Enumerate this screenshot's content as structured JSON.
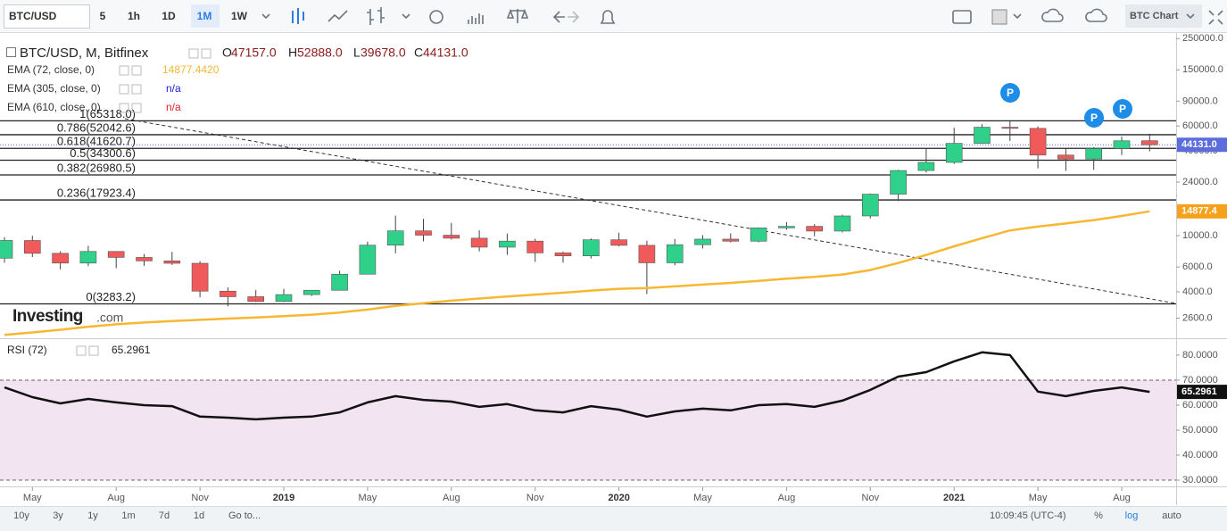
{
  "toolbar": {
    "symbol": "BTC/USD",
    "intervals": [
      "5",
      "1h",
      "1D",
      "1M",
      "1W"
    ],
    "active_interval": 3,
    "layout_name": "BTC Chart"
  },
  "watermark": [
    "Investing",
    ".com"
  ],
  "bottom_bar": {
    "ranges": [
      "10y",
      "3y",
      "1y",
      "1m",
      "7d",
      "1d"
    ],
    "goto": "Go to...",
    "clock": "10:09:45 (UTC-4)",
    "toggles": [
      "%",
      "log",
      "auto"
    ]
  },
  "chart_data": [
    {
      "type": "candlestick",
      "title": "BTC/USD, M, Bitfinex",
      "ohlc_labels": [
        {
          "key": "O",
          "value": "47157.0"
        },
        {
          "key": "H",
          "value": "52888.0"
        },
        {
          "key": "L",
          "value": "39678.0"
        },
        {
          "key": "C",
          "value": "44131.0"
        }
      ],
      "categories": [
        null,
        "May",
        null,
        null,
        "Aug",
        null,
        null,
        "Nov",
        null,
        null,
        "2019",
        null,
        null,
        "May",
        null,
        null,
        "Aug",
        null,
        null,
        "Nov",
        null,
        null,
        "2020",
        null,
        null,
        "May",
        null,
        null,
        "Aug",
        null,
        null,
        "Nov",
        null,
        null,
        "2021",
        null,
        null,
        "May",
        null,
        null,
        "Aug",
        null
      ],
      "open": [
        6926,
        9245,
        7494,
        6391,
        7729,
        7011,
        6626,
        6370,
        4040,
        3690,
        3420,
        3820,
        4100,
        5330,
        8560,
        10820,
        10080,
        9600,
        8290,
        9150,
        7550,
        7190,
        9350,
        8540,
        6420,
        8630,
        9450,
        9140,
        11350,
        11650,
        10780,
        13800,
        19700,
        28990,
        33100,
        45200,
        58800,
        57700,
        37300,
        35000,
        41500,
        47157
      ],
      "high": [
        9759,
        10000,
        7760,
        8480,
        7760,
        7410,
        7680,
        6590,
        4300,
        4120,
        4200,
        4120,
        5640,
        9080,
        13880,
        13180,
        12320,
        10920,
        10360,
        9520,
        7700,
        9560,
        10500,
        9200,
        9480,
        10080,
        10380,
        11440,
        12480,
        12080,
        14100,
        19900,
        29300,
        41950,
        58350,
        61780,
        64890,
        59600,
        41300,
        42400,
        50500,
        52888
      ],
      "low": [
        6430,
        7056,
        5774,
        6080,
        5880,
        6115,
        6200,
        3650,
        3150,
        3380,
        3380,
        3730,
        4090,
        5330,
        7500,
        9100,
        9400,
        7730,
        7300,
        6520,
        6430,
        6880,
        8400,
        3850,
        6170,
        8120,
        8960,
        8980,
        10990,
        9900,
        10540,
        13250,
        17600,
        28130,
        32300,
        44950,
        47000,
        30000,
        28800,
        29300,
        37300,
        39678
      ],
      "close": [
        9245,
        7494,
        6391,
        7729,
        7011,
        6626,
        6370,
        4040,
        3690,
        3420,
        3820,
        4100,
        5330,
        8560,
        10820,
        10080,
        9600,
        8290,
        9150,
        7550,
        7190,
        9350,
        8540,
        6420,
        8630,
        9450,
        9140,
        11350,
        11650,
        10780,
        13800,
        19700,
        28990,
        33100,
        45200,
        58800,
        57700,
        37300,
        35000,
        41500,
        47100,
        44131
      ],
      "up_color": "#2fd08a",
      "down_color": "#f05a5a",
      "series": [
        {
          "name": "EMA (72, close, 0)",
          "color": "#f7b733",
          "value_label": "14877.4420",
          "values": [
            1980,
            2060,
            2150,
            2260,
            2350,
            2420,
            2480,
            2530,
            2580,
            2630,
            2690,
            2750,
            2850,
            2990,
            3180,
            3320,
            3460,
            3580,
            3700,
            3820,
            3940,
            4080,
            4200,
            4250,
            4370,
            4500,
            4620,
            4780,
            4950,
            5100,
            5300,
            5700,
            6400,
            7300,
            8400,
            9600,
            10900,
            11600,
            12200,
            12900,
            13800,
            14877
          ]
        },
        {
          "name": "EMA (305, close, 0)",
          "color": "#2222dd",
          "value_label": "n/a"
        },
        {
          "name": "EMA (610, close, 0)",
          "color": "#dd2222",
          "value_label": "n/a"
        }
      ],
      "log_scale": true,
      "grid": false,
      "ylim": [
        1900,
        270000
      ],
      "yticks": [
        {
          "value": 250000,
          "label": "250000.0"
        },
        {
          "value": 150000,
          "label": "150000.0"
        },
        {
          "value": 90000,
          "label": "90000.0"
        },
        {
          "value": 60000,
          "label": "60000.0"
        },
        {
          "value": 40000,
          "label": "40000.0"
        },
        {
          "value": 24000,
          "label": "24000.0"
        },
        {
          "value": 10000,
          "label": "10000.0"
        },
        {
          "value": 6000,
          "label": "6000.0"
        },
        {
          "value": 4000,
          "label": "4000.0"
        },
        {
          "value": 2600,
          "label": "2600.0"
        }
      ],
      "fib_levels": [
        {
          "value": 65318,
          "label": "1(65318.0)"
        },
        {
          "value": 52042.6,
          "label": "0.786(52042.6)"
        },
        {
          "value": 41620.7,
          "label": "0.618(41620.7)"
        },
        {
          "value": 34300.6,
          "label": "0.5(34300.6)"
        },
        {
          "value": 26980.5,
          "label": "0.382(26980.5)"
        },
        {
          "value": 17923.4,
          "label": "0.236(17923.4)"
        },
        {
          "value": 3283.2,
          "label": "0(3283.2)"
        }
      ],
      "price_badges": [
        {
          "value": 44131,
          "label": "44131.0",
          "color": "#5b6cdc"
        },
        {
          "value": 14877.4,
          "label": "14877.4",
          "color": "#f7a11a"
        }
      ],
      "markers": [
        "P",
        "P",
        "P"
      ]
    },
    {
      "type": "line",
      "title": "RSI (72)",
      "series": [
        {
          "color": "#111111",
          "value_label": "65.2961",
          "values": [
            67.1,
            63.2,
            60.7,
            62.5,
            61.1,
            60,
            59.6,
            55.4,
            55,
            54.3,
            55,
            55.4,
            57.1,
            61.1,
            63.6,
            62.1,
            61.4,
            59.3,
            60.4,
            57.9,
            57.1,
            59.6,
            58.2,
            55.4,
            57.5,
            58.6,
            57.9,
            60,
            60.4,
            59.3,
            61.8,
            66.1,
            71.4,
            73.2,
            77.5,
            81.1,
            80,
            65.4,
            63.6,
            65.7,
            67.1,
            65.2961
          ]
        }
      ],
      "ylim": [
        27.5,
        86.4
      ],
      "yticks": [
        {
          "value": 80,
          "label": "80.0000"
        },
        {
          "value": 70,
          "label": "70.0000"
        },
        {
          "value": 60,
          "label": "60.0000"
        },
        {
          "value": 50,
          "label": "50.0000"
        },
        {
          "value": 40,
          "label": "40.0000"
        },
        {
          "value": 30,
          "label": "30.0000"
        }
      ],
      "levels": [
        70,
        30
      ],
      "band_color": "#f3e4f2"
    }
  ]
}
